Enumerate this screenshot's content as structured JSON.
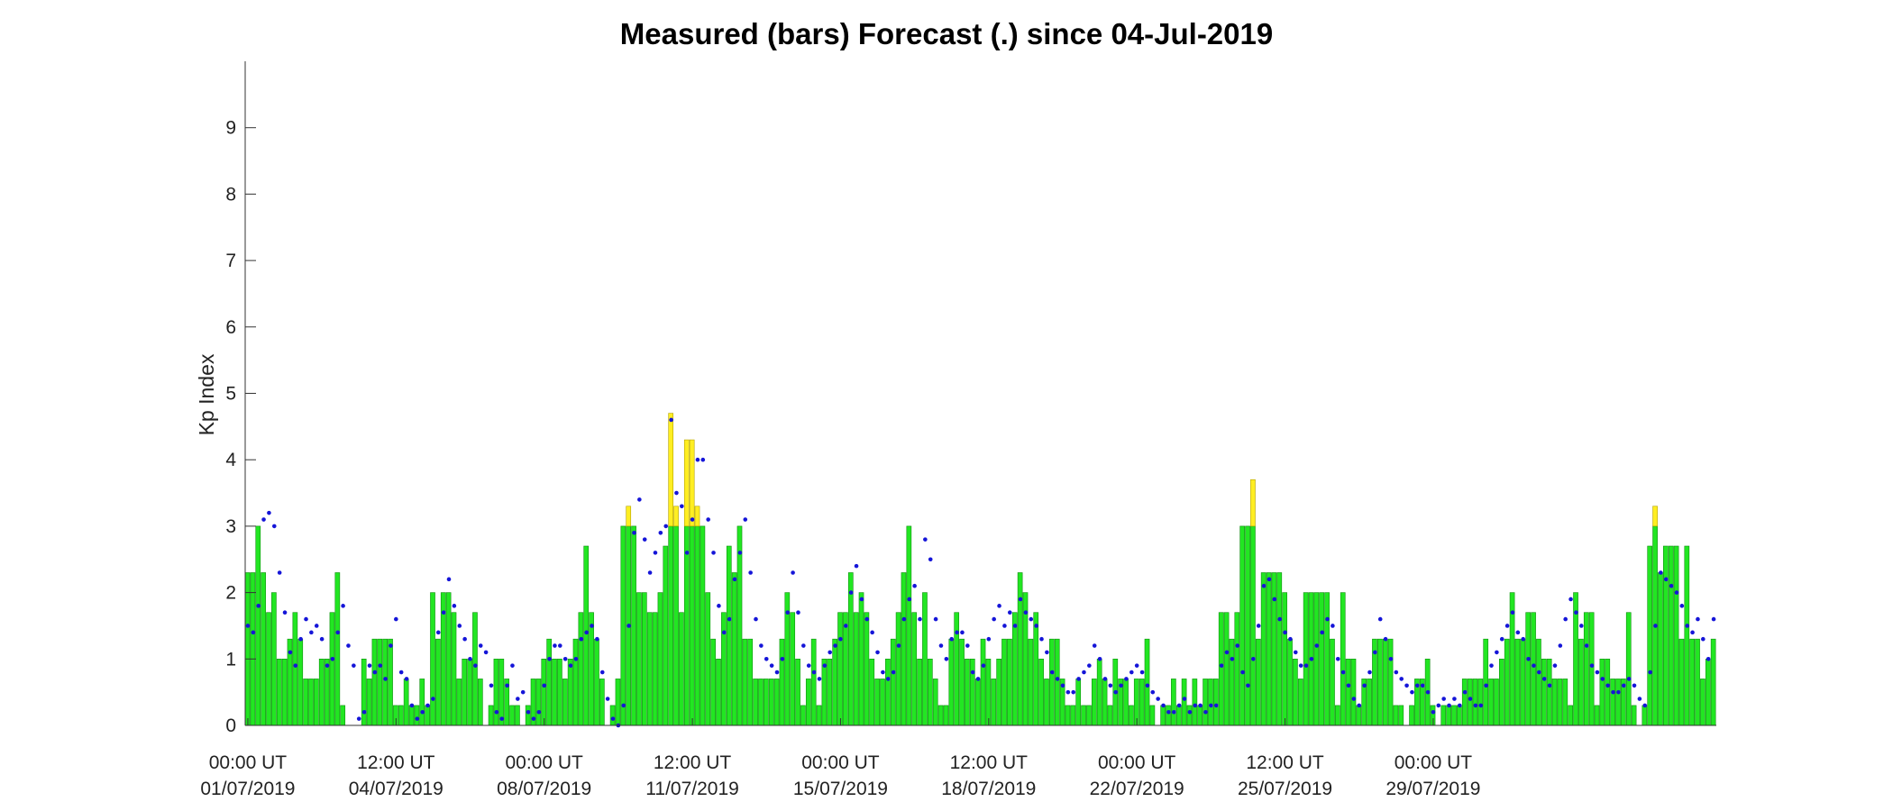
{
  "chart_data": {
    "type": "bar",
    "title": "Measured (bars) Forecast (.) since 04-Jul-2019",
    "xlabel": "",
    "ylabel": "Kp Index",
    "ylim": [
      0,
      10
    ],
    "y_ticks": [
      0,
      1,
      2,
      3,
      4,
      5,
      6,
      7,
      8,
      9
    ],
    "grid": false,
    "x_ticks": [
      {
        "line1": "00:00 UT",
        "line2": "01/07/2019"
      },
      {
        "line1": "12:00 UT",
        "line2": "04/07/2019"
      },
      {
        "line1": "00:00 UT",
        "line2": "08/07/2019"
      },
      {
        "line1": "12:00 UT",
        "line2": "11/07/2019"
      },
      {
        "line1": "00:00 UT",
        "line2": "15/07/2019"
      },
      {
        "line1": "12:00 UT",
        "line2": "18/07/2019"
      },
      {
        "line1": "00:00 UT",
        "line2": "22/07/2019"
      },
      {
        "line1": "12:00 UT",
        "line2": "25/07/2019"
      },
      {
        "line1": "00:00 UT",
        "line2": "29/07/2019"
      }
    ],
    "interval_hours": 3,
    "series": [
      {
        "name": "Measured",
        "style": "bars",
        "color_below_3": "#22e622",
        "color_at_or_above_3": "#ffee22",
        "values": [
          2.3,
          2.3,
          3.0,
          2.3,
          1.7,
          2.0,
          1.0,
          1.0,
          1.3,
          1.7,
          1.3,
          0.7,
          0.7,
          0.7,
          1.0,
          1.0,
          1.7,
          2.3,
          0.3,
          0.0,
          0.0,
          0.0,
          1.0,
          0.7,
          1.3,
          1.3,
          1.3,
          1.3,
          0.3,
          0.3,
          0.7,
          0.3,
          0.3,
          0.7,
          0.3,
          2.0,
          1.3,
          2.0,
          2.0,
          1.7,
          0.7,
          1.0,
          1.0,
          1.7,
          0.7,
          0.0,
          0.3,
          1.0,
          1.0,
          0.7,
          0.3,
          0.3,
          0.0,
          0.3,
          0.7,
          0.7,
          1.0,
          1.3,
          1.0,
          1.0,
          0.7,
          1.0,
          1.3,
          1.7,
          2.7,
          1.7,
          1.3,
          0.7,
          0.0,
          0.3,
          0.7,
          3.0,
          3.3,
          3.0,
          2.0,
          2.0,
          1.7,
          1.7,
          2.0,
          2.7,
          4.7,
          3.3,
          1.7,
          4.3,
          4.3,
          3.3,
          3.0,
          2.0,
          1.3,
          1.0,
          1.7,
          2.7,
          2.3,
          3.0,
          1.3,
          1.3,
          0.7,
          0.7,
          0.7,
          0.7,
          0.7,
          1.3,
          2.0,
          1.7,
          1.0,
          0.3,
          0.7,
          1.3,
          0.3,
          1.0,
          1.0,
          1.3,
          1.7,
          1.7,
          2.3,
          1.7,
          2.0,
          1.7,
          1.0,
          0.7,
          0.7,
          1.0,
          1.3,
          1.7,
          2.3,
          3.0,
          1.7,
          1.0,
          2.0,
          1.0,
          0.7,
          0.3,
          0.3,
          1.3,
          1.7,
          1.3,
          1.0,
          1.0,
          0.7,
          1.3,
          1.0,
          0.7,
          1.0,
          1.3,
          1.3,
          1.7,
          2.3,
          2.0,
          1.3,
          1.7,
          1.0,
          0.7,
          1.3,
          1.3,
          0.7,
          0.3,
          0.3,
          0.7,
          0.3,
          0.3,
          0.7,
          1.0,
          0.7,
          0.3,
          1.0,
          0.7,
          0.7,
          0.3,
          0.7,
          0.7,
          1.3,
          0.3,
          0.0,
          0.3,
          0.3,
          0.7,
          0.3,
          0.7,
          0.3,
          0.7,
          0.3,
          0.7,
          0.7,
          0.7,
          1.7,
          1.7,
          1.3,
          1.7,
          3.0,
          3.0,
          3.7,
          1.3,
          2.3,
          2.3,
          2.3,
          2.3,
          2.0,
          1.3,
          1.0,
          0.7,
          2.0,
          2.0,
          2.0,
          2.0,
          2.0,
          1.3,
          0.3,
          2.0,
          1.0,
          1.0,
          0.3,
          0.7,
          0.7,
          1.3,
          1.3,
          1.3,
          1.3,
          0.3,
          0.3,
          0.0,
          0.3,
          0.7,
          0.7,
          1.0,
          0.3,
          0.0,
          0.3,
          0.3,
          0.3,
          0.3,
          0.7,
          0.7,
          0.7,
          0.7,
          1.3,
          0.7,
          0.7,
          1.0,
          1.3,
          2.0,
          1.3,
          1.3,
          1.7,
          1.7,
          1.3,
          1.0,
          1.0,
          0.7,
          0.7,
          0.7,
          0.3,
          2.0,
          1.3,
          1.7,
          1.7,
          0.3,
          1.0,
          1.0,
          0.7,
          0.7,
          0.7,
          1.7,
          0.3,
          0.0,
          0.3,
          2.7,
          3.3,
          2.3,
          2.7,
          2.7,
          2.7,
          1.3,
          2.7,
          1.3,
          1.3,
          0.7,
          1.0,
          1.3
        ]
      },
      {
        "name": "Forecast",
        "style": "dots",
        "color": "#1515d8",
        "values": [
          1.5,
          1.4,
          1.8,
          3.1,
          3.2,
          3.0,
          2.3,
          1.7,
          1.1,
          0.9,
          1.3,
          1.6,
          1.4,
          1.5,
          1.3,
          0.9,
          1.0,
          1.4,
          1.8,
          1.2,
          0.9,
          0.1,
          0.2,
          0.9,
          0.8,
          0.9,
          0.7,
          1.2,
          1.6,
          0.8,
          0.7,
          0.3,
          0.1,
          0.2,
          0.3,
          0.4,
          1.4,
          1.7,
          2.2,
          1.8,
          1.5,
          1.3,
          1.0,
          0.9,
          1.2,
          1.1,
          0.6,
          0.2,
          0.1,
          0.6,
          0.9,
          0.4,
          0.5,
          0.2,
          0.1,
          0.2,
          0.6,
          1.0,
          1.2,
          1.2,
          1.0,
          0.9,
          1.0,
          1.3,
          1.4,
          1.5,
          1.3,
          0.8,
          0.4,
          0.1,
          0.0,
          0.3,
          1.5,
          2.9,
          3.4,
          2.8,
          2.3,
          2.6,
          2.9,
          3.0,
          4.6,
          3.5,
          3.3,
          2.6,
          3.1,
          4.0,
          4.0,
          3.1,
          2.6,
          1.8,
          1.4,
          1.6,
          2.2,
          2.6,
          3.1,
          2.3,
          1.6,
          1.2,
          1.0,
          0.9,
          0.8,
          1.0,
          1.7,
          2.3,
          1.7,
          1.2,
          0.9,
          0.8,
          0.7,
          0.9,
          1.1,
          1.2,
          1.3,
          1.5,
          2.0,
          2.4,
          1.9,
          1.6,
          1.4,
          1.1,
          0.8,
          0.7,
          0.8,
          1.2,
          1.6,
          1.9,
          2.1,
          1.6,
          2.8,
          2.5,
          1.6,
          1.2,
          1.0,
          1.3,
          1.4,
          1.4,
          1.2,
          0.8,
          0.7,
          0.9,
          1.3,
          1.6,
          1.8,
          1.5,
          1.7,
          1.5,
          1.9,
          1.7,
          1.6,
          1.5,
          1.3,
          1.1,
          0.8,
          0.7,
          0.6,
          0.5,
          0.5,
          0.7,
          0.8,
          0.9,
          1.2,
          1.0,
          0.7,
          0.6,
          0.5,
          0.6,
          0.7,
          0.8,
          0.9,
          0.8,
          0.6,
          0.5,
          0.4,
          0.3,
          0.2,
          0.2,
          0.3,
          0.4,
          0.2,
          0.3,
          0.3,
          0.2,
          0.3,
          0.3,
          0.9,
          1.1,
          1.0,
          1.2,
          0.8,
          0.6,
          1.0,
          1.5,
          2.1,
          2.2,
          1.9,
          1.6,
          1.4,
          1.3,
          1.1,
          0.9,
          0.9,
          1.0,
          1.2,
          1.4,
          1.6,
          1.5,
          1.0,
          0.8,
          0.6,
          0.4,
          0.3,
          0.6,
          0.8,
          1.1,
          1.6,
          1.3,
          1.0,
          0.8,
          0.7,
          0.6,
          0.5,
          0.6,
          0.6,
          0.5,
          0.2,
          0.3,
          0.4,
          0.3,
          0.4,
          0.3,
          0.5,
          0.4,
          0.3,
          0.3,
          0.6,
          0.9,
          1.1,
          1.3,
          1.5,
          1.7,
          1.4,
          1.3,
          1.0,
          0.9,
          0.8,
          0.7,
          0.6,
          0.9,
          1.2,
          1.6,
          1.9,
          1.7,
          1.5,
          1.2,
          0.9,
          0.8,
          0.7,
          0.6,
          0.5,
          0.5,
          0.6,
          0.7,
          0.6,
          0.4,
          0.3,
          0.8,
          1.5,
          2.3,
          2.2,
          2.1,
          2.0,
          1.8,
          1.5,
          1.4,
          1.6,
          1.3,
          1.0,
          1.6
        ]
      }
    ]
  }
}
